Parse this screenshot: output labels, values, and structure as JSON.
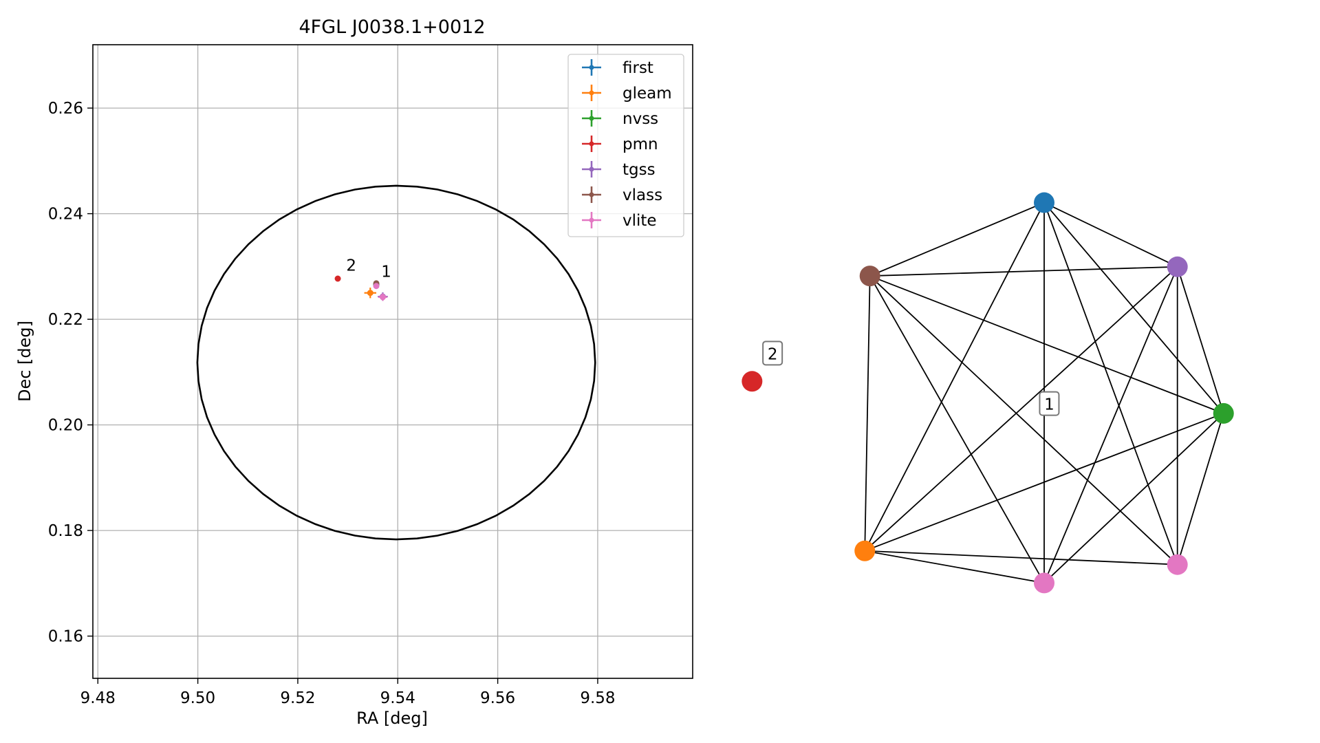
{
  "chart_data": [
    {
      "type": "scatter",
      "title": "4FGL J0038.1+0012",
      "xlabel": "RA [deg]",
      "ylabel": "Dec [deg]",
      "xlim": [
        9.479,
        9.599
      ],
      "ylim": [
        0.152,
        0.272
      ],
      "xticks": [
        9.48,
        9.5,
        9.52,
        9.54,
        9.56,
        9.58
      ],
      "xtick_labels": [
        "9.48",
        "9.50",
        "9.52",
        "9.54",
        "9.56",
        "9.58"
      ],
      "yticks": [
        0.16,
        0.18,
        0.2,
        0.22,
        0.24,
        0.26
      ],
      "ytick_labels": [
        "0.16",
        "0.18",
        "0.20",
        "0.22",
        "0.24",
        "0.26"
      ],
      "grid": true,
      "legend_position": "top-right",
      "ellipse": {
        "center": [
          9.5397,
          0.2118
        ],
        "semi_axis_x": 0.0398,
        "semi_axis_y": 0.0335
      },
      "series": [
        {
          "name": "first",
          "color": "#1f77b4",
          "points": [
            {
              "x": 9.5357,
              "y": 0.2265,
              "xerr": 0.0002,
              "yerr": 0.0002
            }
          ]
        },
        {
          "name": "gleam",
          "color": "#ff7f0e",
          "points": [
            {
              "x": 9.5345,
              "y": 0.225,
              "xerr": 0.0012,
              "yerr": 0.001
            }
          ]
        },
        {
          "name": "nvss",
          "color": "#2ca02c",
          "points": [
            {
              "x": 9.5357,
              "y": 0.2266,
              "xerr": 0.0003,
              "yerr": 0.0003
            }
          ]
        },
        {
          "name": "pmn",
          "color": "#d62728",
          "points": [
            {
              "x": 9.528,
              "y": 0.2277,
              "xerr": 0.0003,
              "yerr": 0.0003
            }
          ]
        },
        {
          "name": "tgss",
          "color": "#9467bd",
          "points": [
            {
              "x": 9.537,
              "y": 0.2243,
              "xerr": 0.001,
              "yerr": 0.0008
            }
          ]
        },
        {
          "name": "vlass",
          "color": "#8c564b",
          "points": [
            {
              "x": 9.5357,
              "y": 0.2268,
              "xerr": 0.0002,
              "yerr": 0.0002
            }
          ]
        },
        {
          "name": "vlite",
          "color": "#e377c2",
          "points": [
            {
              "x": 9.537,
              "y": 0.2242,
              "xerr": 0.0009,
              "yerr": 0.0007
            },
            {
              "x": 9.5357,
              "y": 0.2263,
              "xerr": 0.0002,
              "yerr": 0.0002
            }
          ]
        }
      ],
      "group_labels": [
        {
          "text": "1",
          "x": 9.5367,
          "y": 0.228
        },
        {
          "text": "2",
          "x": 9.5297,
          "y": 0.2292
        }
      ]
    },
    {
      "type": "network",
      "nodes": [
        {
          "id": "first",
          "color": "#1f77b4",
          "x": 0.6,
          "y": 0.84
        },
        {
          "id": "tgss",
          "color": "#9467bd",
          "x": 0.86,
          "y": 0.7
        },
        {
          "id": "vlass",
          "color": "#8c564b",
          "x": 0.26,
          "y": 0.68
        },
        {
          "id": "nvss",
          "color": "#2ca02c",
          "x": 0.95,
          "y": 0.38
        },
        {
          "id": "pmn",
          "color": "#d62728",
          "x": 0.03,
          "y": 0.45
        },
        {
          "id": "gleam",
          "color": "#ff7f0e",
          "x": 0.25,
          "y": 0.08
        },
        {
          "id": "vlite-a",
          "color": "#e377c2",
          "x": 0.86,
          "y": 0.05
        },
        {
          "id": "vlite-b",
          "color": "#e377c2",
          "x": 0.6,
          "y": 0.01
        }
      ],
      "edges": [
        [
          "first",
          "tgss"
        ],
        [
          "first",
          "vlass"
        ],
        [
          "first",
          "nvss"
        ],
        [
          "first",
          "gleam"
        ],
        [
          "first",
          "vlite-a"
        ],
        [
          "first",
          "vlite-b"
        ],
        [
          "tgss",
          "vlass"
        ],
        [
          "tgss",
          "nvss"
        ],
        [
          "tgss",
          "gleam"
        ],
        [
          "tgss",
          "vlite-a"
        ],
        [
          "tgss",
          "vlite-b"
        ],
        [
          "vlass",
          "nvss"
        ],
        [
          "vlass",
          "gleam"
        ],
        [
          "vlass",
          "vlite-a"
        ],
        [
          "vlass",
          "vlite-b"
        ],
        [
          "nvss",
          "gleam"
        ],
        [
          "nvss",
          "vlite-a"
        ],
        [
          "nvss",
          "vlite-b"
        ],
        [
          "gleam",
          "vlite-a"
        ],
        [
          "gleam",
          "vlite-b"
        ]
      ],
      "labels": [
        {
          "text": "1",
          "x": 0.61,
          "y": 0.4
        },
        {
          "text": "2",
          "x": 0.07,
          "y": 0.51
        }
      ]
    }
  ]
}
